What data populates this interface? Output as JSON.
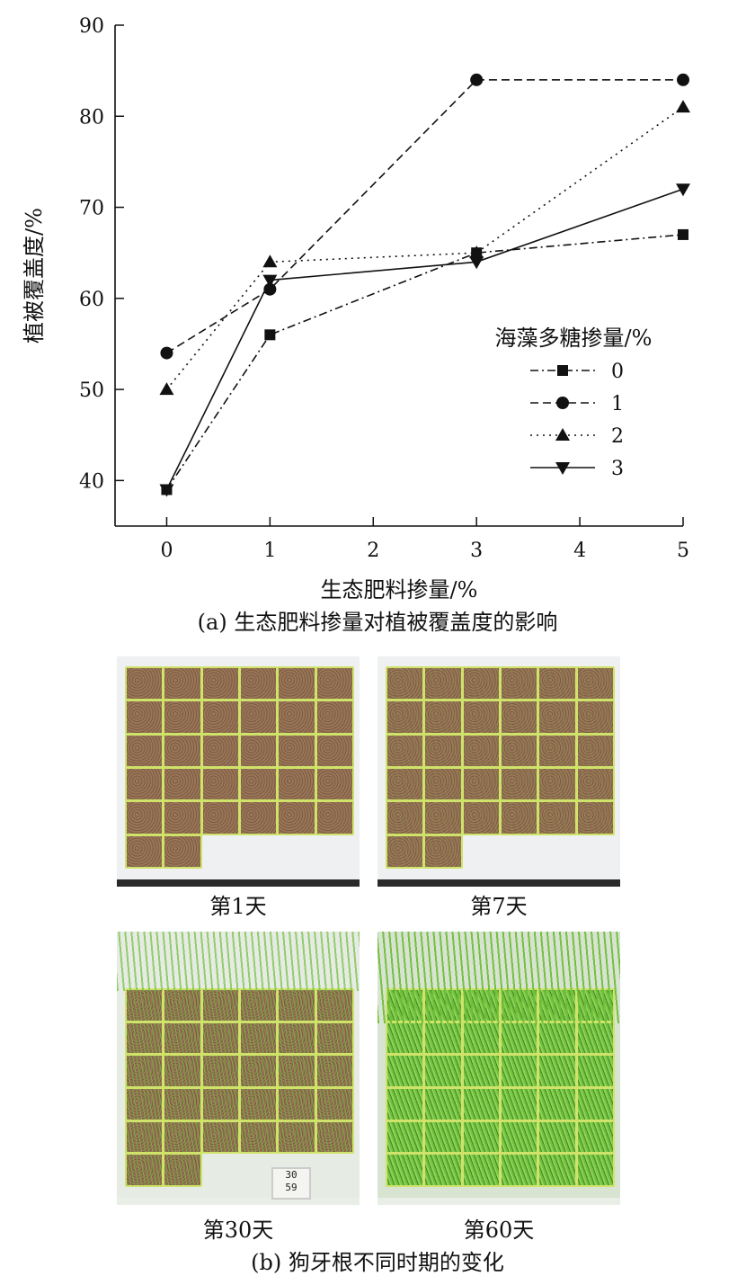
{
  "chart_data": {
    "type": "line",
    "ylabel": "植被覆盖度/%",
    "xlabel": "生态肥料掺量/%",
    "xlim": [
      -0.5,
      5
    ],
    "ylim": [
      35,
      90
    ],
    "xticks": [
      0,
      1,
      2,
      3,
      4,
      5
    ],
    "yticks": [
      40,
      50,
      60,
      70,
      80,
      90
    ],
    "legend": {
      "title": "海藻多糖掺量/%",
      "position": "right"
    },
    "series": [
      {
        "name": "0",
        "marker": "square",
        "dash": "dashdot",
        "x": [
          0,
          1,
          3,
          5
        ],
        "y": [
          39,
          56,
          65,
          67
        ]
      },
      {
        "name": "1",
        "marker": "circle",
        "dash": "dash",
        "x": [
          0,
          1,
          3,
          5
        ],
        "y": [
          54,
          61,
          84,
          84
        ]
      },
      {
        "name": "2",
        "marker": "triangle-up",
        "dash": "dot",
        "x": [
          0,
          1,
          3,
          5
        ],
        "y": [
          50,
          64,
          65,
          81
        ]
      },
      {
        "name": "3",
        "marker": "triangle-down",
        "dash": "solid",
        "x": [
          0,
          1,
          3,
          5
        ],
        "y": [
          39,
          62,
          64,
          72
        ]
      }
    ]
  },
  "caption_a": "(a) 生态肥料掺量对植被覆盖度的影响",
  "caption_b": "(b) 狗牙根不同时期的变化",
  "photos": [
    {
      "label": "第1天",
      "growth": 0.0
    },
    {
      "label": "第7天",
      "growth": 0.05
    },
    {
      "label": "第30天",
      "growth": 0.45
    },
    {
      "label": "第60天",
      "growth": 1.0
    }
  ],
  "meter_text": {
    "line1": "30",
    "line2": "59"
  },
  "colors": {
    "soil": "#9a7658",
    "soil_dark": "#7a5a42",
    "pot_rim": "#cfe36a",
    "grass": "#6fbf3a",
    "grass_dark": "#3f8a24"
  }
}
